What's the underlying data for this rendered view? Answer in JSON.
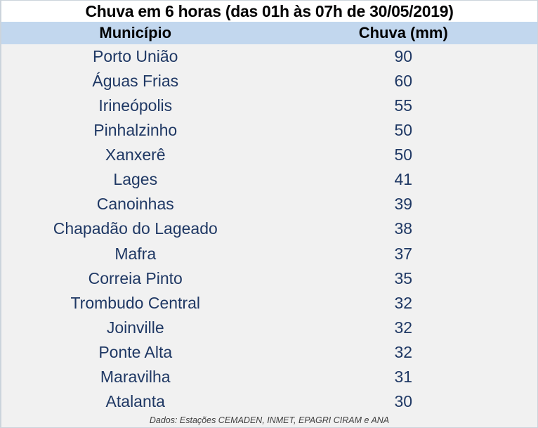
{
  "colors": {
    "header_background": "#C2D7EE",
    "row_background": "#F1F1F1",
    "title_background": "#FFFFFF",
    "data_text": "#1F3864",
    "header_text": "#000000",
    "footer_text": "#404040",
    "border": "#CCD4DC"
  },
  "chart_data": {
    "type": "table",
    "title": "Chuva em 6 horas (das 01h às 07h de 30/05/2019)",
    "columns": [
      "Município",
      "Chuva (mm)"
    ],
    "rows": [
      {
        "municipio": "Porto União",
        "chuva_mm": 90
      },
      {
        "municipio": "Águas Frias",
        "chuva_mm": 60
      },
      {
        "municipio": "Irineópolis",
        "chuva_mm": 55
      },
      {
        "municipio": "Pinhalzinho",
        "chuva_mm": 50
      },
      {
        "municipio": "Xanxerê",
        "chuva_mm": 50
      },
      {
        "municipio": "Lages",
        "chuva_mm": 41
      },
      {
        "municipio": "Canoinhas",
        "chuva_mm": 39
      },
      {
        "municipio": "Chapadão do Lageado",
        "chuva_mm": 38
      },
      {
        "municipio": "Mafra",
        "chuva_mm": 37
      },
      {
        "municipio": "Correia Pinto",
        "chuva_mm": 35
      },
      {
        "municipio": "Trombudo Central",
        "chuva_mm": 32
      },
      {
        "municipio": "Joinville",
        "chuva_mm": 32
      },
      {
        "municipio": "Ponte Alta",
        "chuva_mm": 32
      },
      {
        "municipio": "Maravilha",
        "chuva_mm": 31
      },
      {
        "municipio": "Atalanta",
        "chuva_mm": 30
      }
    ],
    "source_note": "Dados: Estações CEMADEN, INMET, EPAGRI CIRAM e ANA"
  }
}
